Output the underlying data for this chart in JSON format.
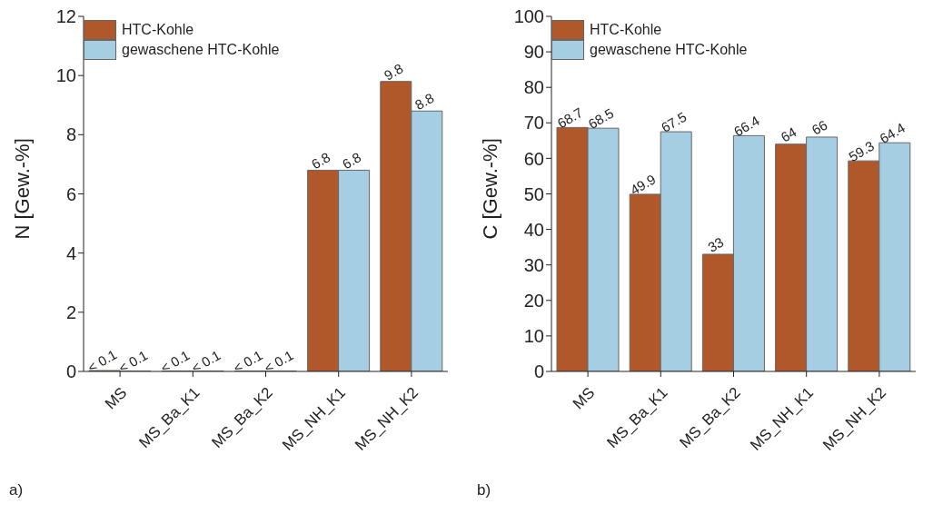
{
  "chart_data": [
    {
      "type": "bar",
      "ylabel": "N [Gew.-%]",
      "categories": [
        "MS",
        "MS_Ba_K1",
        "MS_Ba_K2",
        "MS_NH_K1",
        "MS_NH_K2"
      ],
      "ylim": [
        0,
        12
      ],
      "yticks": [
        0,
        2,
        4,
        6,
        8,
        10,
        12
      ],
      "legend": "top left",
      "annotations": [
        "a)"
      ],
      "series": [
        {
          "name": "HTC-Kohle",
          "color": "#b0582a",
          "values": [
            0.03,
            0.01,
            0.01,
            6.8,
            9.8
          ],
          "value_labels": [
            "< 0.1",
            "< 0.1",
            "< 0.1",
            "6.8",
            "9.8"
          ]
        },
        {
          "name": "gewaschene HTC-Kohle",
          "color": "#a6cee3",
          "values": [
            0.01,
            0.01,
            0.01,
            6.8,
            8.8
          ],
          "value_labels": [
            "< 0.1",
            "< 0.1",
            "< 0.1",
            "6.8",
            "8.8"
          ]
        }
      ]
    },
    {
      "type": "bar",
      "ylabel": "C [Gew.-%]",
      "categories": [
        "MS",
        "MS_Ba_K1",
        "MS_Ba_K2",
        "MS_NH_K1",
        "MS_NH_K2"
      ],
      "ylim": [
        0,
        100
      ],
      "yticks": [
        0,
        10,
        20,
        30,
        40,
        50,
        60,
        70,
        80,
        90,
        100
      ],
      "legend": "top left",
      "annotations": [
        "b)"
      ],
      "data_labels": true,
      "series": [
        {
          "name": "HTC-Kohle",
          "color": "#b0582a",
          "values": [
            68.7,
            49.9,
            33,
            64,
            59.3
          ]
        },
        {
          "name": "gewaschene HTC-Kohle",
          "color": "#a6cee3",
          "values": [
            68.5,
            67.5,
            66.4,
            66,
            64.4
          ]
        }
      ]
    }
  ]
}
